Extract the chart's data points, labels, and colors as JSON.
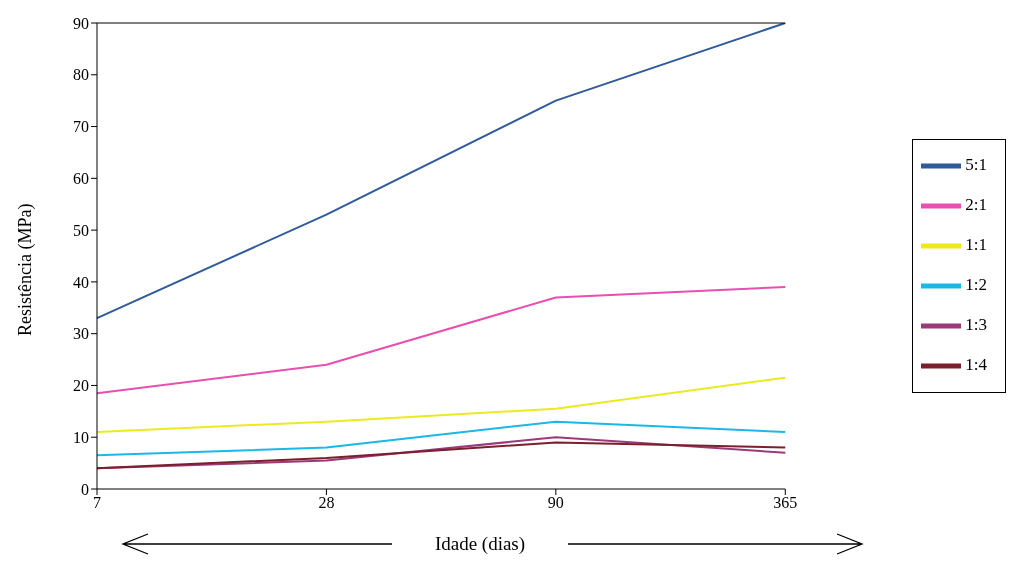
{
  "chart_data": {
    "type": "line",
    "xlabel": "Idade (dias)",
    "ylabel": "Resistência (MPa)",
    "categories": [
      "7",
      "28",
      "90",
      "365"
    ],
    "series": [
      {
        "name": "5:1",
        "color": "#2f5b9a",
        "values": [
          33,
          53,
          75,
          90
        ]
      },
      {
        "name": "2:1",
        "color": "#e84fb0",
        "values": [
          18.5,
          24,
          37,
          39
        ]
      },
      {
        "name": "1:1",
        "color": "#ecea1e",
        "values": [
          11,
          13,
          15.5,
          21.5
        ]
      },
      {
        "name": "1:2",
        "color": "#19b8e6",
        "values": [
          6.5,
          8,
          13,
          11
        ]
      },
      {
        "name": "1:3",
        "color": "#9b3a78",
        "values": [
          4,
          5.5,
          10,
          7
        ]
      },
      {
        "name": "1:4",
        "color": "#7a1f2c",
        "values": [
          4,
          6,
          9,
          8
        ]
      }
    ],
    "ylim": [
      0,
      90
    ],
    "yticks": [
      0,
      10,
      20,
      30,
      40,
      50,
      60,
      70,
      80,
      90
    ],
    "grid": false,
    "legend": "right",
    "marker": "none",
    "line_style": "solid"
  }
}
